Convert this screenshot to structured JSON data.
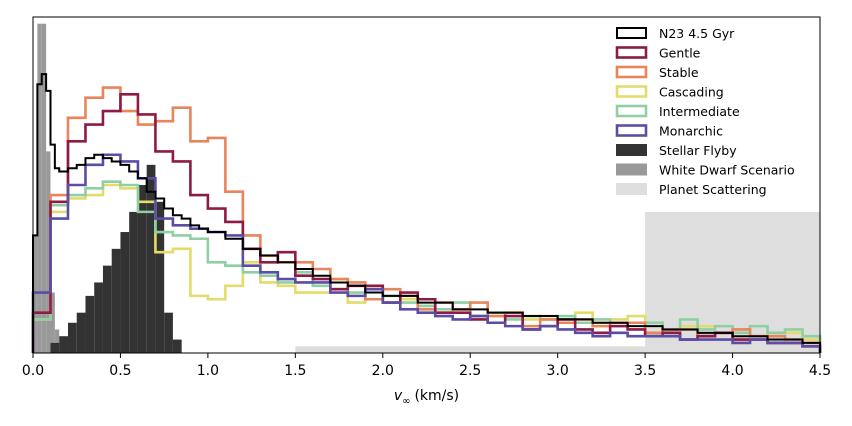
{
  "chart_data": {
    "type": "histogram",
    "title": "",
    "xlabel": "v∞ (km/s)",
    "xlabel_parts": {
      "symbol": "v",
      "subscript": "∞",
      "unit": "(km/s)"
    },
    "ylabel": "",
    "xlim": [
      0.0,
      4.5
    ],
    "ylim": [
      0,
      100
    ],
    "x_ticks": [
      0.0,
      0.5,
      1.0,
      1.5,
      2.0,
      2.5,
      3.0,
      3.5,
      4.0,
      4.5
    ],
    "x_tick_labels": [
      "0.0",
      "0.5",
      "1.0",
      "1.5",
      "2.0",
      "2.5",
      "3.0",
      "3.5",
      "4.0",
      "4.5"
    ],
    "y_ticks_visible": false,
    "legend": {
      "location": "upper-right",
      "entries": [
        {
          "label": "N23 4.5 Gyr",
          "style": "outline",
          "color": "#000000"
        },
        {
          "label": "Gentle",
          "style": "outline",
          "color": "#8e1b45"
        },
        {
          "label": "Stable",
          "style": "outline",
          "color": "#e8855a"
        },
        {
          "label": "Cascading",
          "style": "outline",
          "color": "#e3dc6a"
        },
        {
          "label": "Intermediate",
          "style": "outline",
          "color": "#8fcfa4"
        },
        {
          "label": "Monarchic",
          "style": "outline",
          "color": "#5b4ca6"
        },
        {
          "label": "Stellar Flyby",
          "style": "filled",
          "color": "#333333"
        },
        {
          "label": "White Dwarf Scenario",
          "style": "filled",
          "color": "#999999"
        },
        {
          "label": "Planet Scattering",
          "style": "filled",
          "color": "#dedede"
        }
      ]
    },
    "series": [
      {
        "name": "Planet Scattering",
        "kind": "filled",
        "color": "#dedede",
        "edges": [
          1.5,
          3.5,
          4.5
        ],
        "values": [
          2,
          42
        ]
      },
      {
        "name": "White Dwarf Scenario",
        "kind": "filled",
        "color": "#999999",
        "edges": [
          0.0,
          0.025,
          0.05,
          0.075,
          0.1,
          0.125,
          0.15,
          0.175,
          0.2
        ],
        "values": [
          35,
          98,
          98,
          60,
          18,
          7,
          3,
          0
        ]
      },
      {
        "name": "Stellar Flyby",
        "kind": "filled",
        "color": "#333333",
        "edges": [
          0.1,
          0.15,
          0.2,
          0.25,
          0.3,
          0.35,
          0.4,
          0.45,
          0.5,
          0.55,
          0.6,
          0.65,
          0.7,
          0.75,
          0.8,
          0.85
        ],
        "values": [
          3,
          5,
          9,
          12,
          17,
          21,
          26,
          31,
          36,
          42,
          50,
          56,
          45,
          12,
          4
        ]
      },
      {
        "name": "Cascading",
        "kind": "step",
        "color": "#e3dc6a",
        "edges": [
          0.0,
          0.1,
          0.2,
          0.3,
          0.4,
          0.5,
          0.6,
          0.7,
          0.8,
          0.9,
          1.0,
          1.1,
          1.2,
          1.3,
          1.4,
          1.5,
          1.6,
          1.7,
          1.8,
          1.9,
          2.0,
          2.1,
          2.2,
          2.3,
          2.4,
          2.5,
          2.6,
          2.7,
          2.8,
          2.9,
          3.0,
          3.1,
          3.2,
          3.3,
          3.4,
          3.5,
          3.6,
          3.7,
          3.8,
          3.9,
          4.0,
          4.1,
          4.2,
          4.3,
          4.4,
          4.5
        ],
        "values": [
          10,
          42,
          46,
          47,
          50,
          49,
          45,
          30,
          31,
          17,
          16,
          20,
          27,
          21,
          20,
          18,
          18,
          22,
          15,
          20,
          17,
          16,
          14,
          12,
          13,
          11,
          9,
          12,
          10,
          11,
          9,
          12,
          9,
          10,
          11,
          6,
          7,
          8,
          8,
          6,
          7,
          5,
          6,
          6,
          4
        ]
      },
      {
        "name": "Intermediate",
        "kind": "step",
        "color": "#8fcfa4",
        "edges": [
          0.0,
          0.1,
          0.2,
          0.3,
          0.4,
          0.5,
          0.6,
          0.7,
          0.8,
          0.9,
          1.0,
          1.1,
          1.2,
          1.3,
          1.4,
          1.5,
          1.6,
          1.7,
          1.8,
          1.9,
          2.0,
          2.1,
          2.2,
          2.3,
          2.4,
          2.5,
          2.6,
          2.7,
          2.8,
          2.9,
          3.0,
          3.1,
          3.2,
          3.3,
          3.4,
          3.5,
          3.6,
          3.7,
          3.8,
          3.9,
          4.0,
          4.1,
          4.2,
          4.3,
          4.4,
          4.5
        ],
        "values": [
          10,
          44,
          47,
          49,
          51,
          50,
          42,
          36,
          35,
          34,
          27,
          26,
          24,
          23,
          21,
          24,
          20,
          19,
          18,
          16,
          17,
          15,
          14,
          13,
          15,
          11,
          12,
          10,
          11,
          10,
          11,
          9,
          10,
          8,
          9,
          9,
          7,
          10,
          7,
          8,
          6,
          8,
          6,
          7,
          5
        ]
      },
      {
        "name": "Stable",
        "kind": "step",
        "color": "#e8855a",
        "edges": [
          0.0,
          0.1,
          0.2,
          0.3,
          0.4,
          0.5,
          0.6,
          0.7,
          0.8,
          0.9,
          1.0,
          1.1,
          1.2,
          1.3,
          1.4,
          1.5,
          1.6,
          1.7,
          1.8,
          1.9,
          2.0,
          2.1,
          2.2,
          2.3,
          2.4,
          2.5,
          2.6,
          2.7,
          2.8,
          2.9,
          3.0,
          3.1,
          3.2,
          3.3,
          3.4,
          3.5,
          3.6,
          3.7,
          3.8,
          3.9,
          4.0,
          4.1,
          4.2,
          4.3,
          4.4,
          4.5
        ],
        "values": [
          12,
          47,
          70,
          76,
          79,
          72,
          68,
          69,
          73,
          63,
          64,
          48,
          35,
          29,
          27,
          27,
          25,
          22,
          21,
          16,
          19,
          17,
          13,
          15,
          13,
          15,
          11,
          12,
          8,
          10,
          9,
          10,
          8,
          9,
          9,
          6,
          7,
          7,
          5,
          6,
          7,
          5,
          5,
          4,
          3
        ]
      },
      {
        "name": "Gentle",
        "kind": "step",
        "color": "#8e1b45",
        "edges": [
          0.0,
          0.1,
          0.2,
          0.3,
          0.4,
          0.5,
          0.6,
          0.7,
          0.8,
          0.9,
          1.0,
          1.1,
          1.2,
          1.3,
          1.4,
          1.5,
          1.6,
          1.7,
          1.8,
          1.9,
          2.0,
          2.1,
          2.2,
          2.3,
          2.4,
          2.5,
          2.6,
          2.7,
          2.8,
          2.9,
          3.0,
          3.1,
          3.2,
          3.3,
          3.4,
          3.5,
          3.6,
          3.7,
          3.8,
          3.9,
          4.0,
          4.1,
          4.2,
          4.3,
          4.4,
          4.5
        ],
        "values": [
          12,
          45,
          63,
          68,
          72,
          77,
          71,
          60,
          57,
          47,
          43,
          39,
          31,
          27,
          30,
          23,
          22,
          19,
          20,
          20,
          15,
          18,
          16,
          12,
          12,
          10,
          9,
          11,
          7,
          8,
          10,
          7,
          6,
          8,
          7,
          5,
          6,
          4,
          5,
          6,
          4,
          4,
          3,
          3,
          2
        ]
      },
      {
        "name": "Monarchic",
        "kind": "step",
        "color": "#5b4ca6",
        "edges": [
          0.0,
          0.1,
          0.2,
          0.3,
          0.4,
          0.5,
          0.6,
          0.7,
          0.8,
          0.9,
          1.0,
          1.1,
          1.2,
          1.3,
          1.4,
          1.5,
          1.6,
          1.7,
          1.8,
          1.9,
          2.0,
          2.1,
          2.2,
          2.3,
          2.4,
          2.5,
          2.6,
          2.7,
          2.8,
          2.9,
          3.0,
          3.1,
          3.2,
          3.3,
          3.4,
          3.5,
          3.6,
          3.7,
          3.8,
          3.9,
          4.0,
          4.1,
          4.2,
          4.3,
          4.4,
          4.5
        ],
        "values": [
          18,
          40,
          50,
          56,
          59,
          57,
          52,
          40,
          38,
          37,
          36,
          35,
          26,
          24,
          22,
          21,
          21,
          18,
          17,
          19,
          15,
          13,
          12,
          11,
          10,
          11,
          9,
          8,
          7,
          8,
          7,
          6,
          5,
          6,
          5,
          5,
          5,
          4,
          4,
          4,
          3,
          4,
          3,
          3,
          2
        ]
      },
      {
        "name": "N23 4.5 Gyr",
        "kind": "step",
        "color": "#000000",
        "edges": [
          0.0,
          0.025,
          0.05,
          0.075,
          0.1,
          0.125,
          0.15,
          0.2,
          0.25,
          0.3,
          0.35,
          0.4,
          0.45,
          0.5,
          0.55,
          0.6,
          0.65,
          0.7,
          0.75,
          0.8,
          0.85,
          0.9,
          0.95,
          1.0,
          1.1,
          1.2,
          1.3,
          1.4,
          1.5,
          1.6,
          1.7,
          1.8,
          1.9,
          2.0,
          2.2,
          2.4,
          2.6,
          2.8,
          3.0,
          3.2,
          3.4,
          3.6,
          3.8,
          4.0,
          4.2,
          4.4,
          4.5
        ],
        "values": [
          35,
          80,
          83,
          78,
          62,
          55,
          54,
          55,
          56,
          58,
          59,
          58,
          57,
          56,
          54,
          52,
          48,
          46,
          43,
          41,
          40,
          38,
          37,
          36,
          34,
          31,
          29,
          27,
          25,
          23,
          21,
          20,
          18,
          17,
          15,
          13,
          12,
          11,
          10,
          9,
          8,
          7,
          6,
          5,
          4,
          3
        ]
      }
    ]
  }
}
